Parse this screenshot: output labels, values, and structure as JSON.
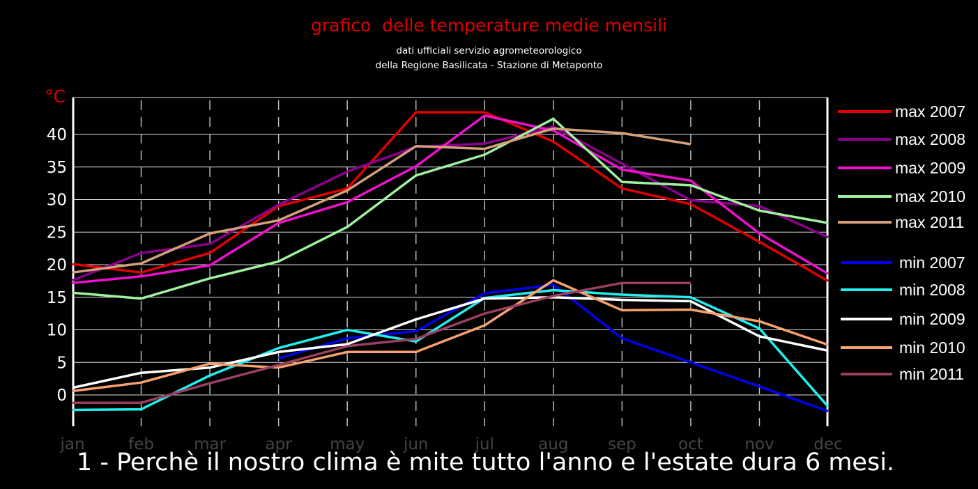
{
  "title": "grafico  delle temperature medie mensili",
  "subtitle_line1": "dati ufficiali servizio agrometeorologico",
  "subtitle_line2": "della Regione Basilicata - Stazione di Metaponto",
  "unit_label": "°C",
  "caption": "1 - Perchè il nostro clima è mite tutto l'anno e l'estate dura 6 mesi.",
  "chart_data": {
    "type": "line",
    "title": "grafico  delle temperature medie mensili",
    "ylabel": "°C",
    "xlabel": "",
    "categories": [
      "jan",
      "feb",
      "mar",
      "apr",
      "may",
      "jun",
      "jul",
      "aug",
      "sep",
      "oct",
      "nov",
      "dec"
    ],
    "yticks": [
      0,
      5,
      10,
      15,
      20,
      25,
      30,
      35,
      40
    ],
    "ylim": [
      -5,
      45
    ],
    "grid": "horizontal solid, vertical dashed",
    "legend_position": "right",
    "series": [
      {
        "name": "max 2007",
        "color": "#e00000",
        "values": [
          20.1,
          18.8,
          21.8,
          29.0,
          31.7,
          43.4,
          43.4,
          38.9,
          31.7,
          29.3,
          23.5,
          17.5
        ]
      },
      {
        "name": "max 2008",
        "color": "#8b008b",
        "values": [
          17.6,
          21.8,
          23.2,
          29.2,
          34.3,
          38.1,
          38.6,
          41.2,
          35.5,
          29.9,
          29.0,
          24.2
        ]
      },
      {
        "name": "max 2009",
        "color": "#ee11cc",
        "values": [
          17.2,
          18.2,
          19.9,
          26.4,
          29.6,
          35.1,
          42.9,
          40.6,
          34.6,
          32.9,
          24.8,
          18.6
        ]
      },
      {
        "name": "max 2010",
        "color": "#a0f0a0",
        "values": [
          15.7,
          14.8,
          17.9,
          20.5,
          25.8,
          33.7,
          36.9,
          42.4,
          32.7,
          32.2,
          28.3,
          26.4
        ]
      },
      {
        "name": "max 2011",
        "color": "#d4a07a",
        "values": [
          18.8,
          20.2,
          24.8,
          26.8,
          31.4,
          38.2,
          37.8,
          40.9,
          40.2,
          38.5,
          null,
          null
        ]
      },
      {
        "name": "min 2007",
        "color": "#0000ee",
        "values": [
          null,
          null,
          null,
          5.6,
          8.7,
          9.8,
          15.6,
          16.9,
          8.7,
          5.0,
          1.3,
          -2.5
        ]
      },
      {
        "name": "min 2008",
        "color": "#22eeee",
        "values": [
          -2.3,
          -2.2,
          3.0,
          7.2,
          10.0,
          8.2,
          14.9,
          16.1,
          15.4,
          15.0,
          10.2,
          -1.8
        ]
      },
      {
        "name": "min 2009",
        "color": "#ffffff",
        "values": [
          1.1,
          3.4,
          4.2,
          6.6,
          7.8,
          11.6,
          14.8,
          15.0,
          14.6,
          14.4,
          9.0,
          6.8
        ]
      },
      {
        "name": "min 2010",
        "color": "#f7a070",
        "values": [
          0.6,
          1.9,
          4.8,
          4.2,
          6.6,
          6.6,
          10.7,
          17.6,
          13.0,
          13.1,
          11.3,
          7.7
        ]
      },
      {
        "name": "min 2011",
        "color": "#9a3f5f",
        "values": [
          -1.2,
          -1.2,
          1.8,
          4.6,
          7.5,
          8.6,
          12.5,
          15.2,
          17.2,
          17.2,
          null,
          null
        ]
      }
    ]
  }
}
